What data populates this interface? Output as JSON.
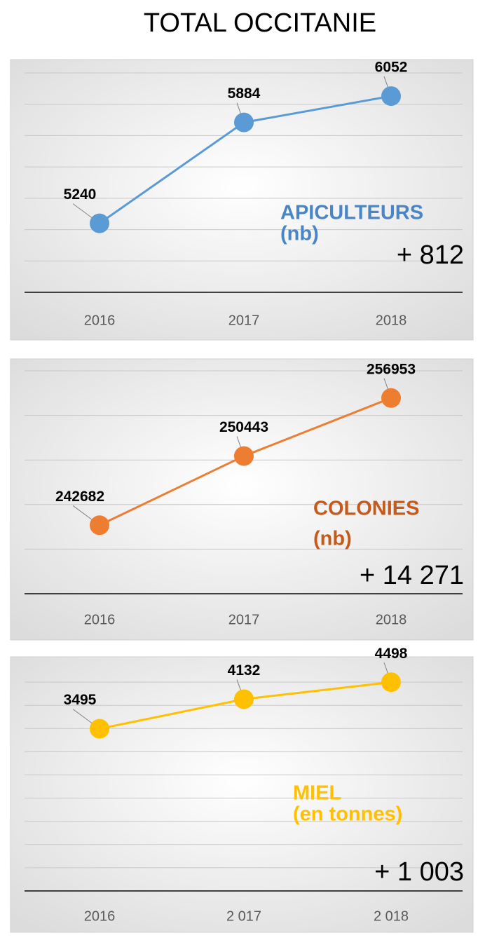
{
  "title": "TOTAL OCCITANIE",
  "chart_data": [
    {
      "type": "line",
      "categories": [
        "2016",
        "2017",
        "2018"
      ],
      "values": [
        5240,
        5884,
        6052
      ],
      "color": "#5b9bd5",
      "label_lines": [
        "APICULTEURS",
        "(nb)"
      ],
      "label_color": "#4a86c6",
      "delta": "+ 812",
      "ylim": [
        4800,
        6200
      ],
      "yticks": [
        4800,
        5000,
        5200,
        5400,
        5600,
        5800,
        6000,
        6200
      ],
      "grid": true
    },
    {
      "type": "line",
      "categories": [
        "2016",
        "2017",
        "2018"
      ],
      "values": [
        242682,
        250443,
        256953
      ],
      "color": "#ed7d31",
      "label_lines": [
        "COLONIES",
        "(nb)"
      ],
      "label_color": "#c65a1a",
      "delta": "+ 14 271",
      "ylim": [
        235000,
        260000
      ],
      "yticks": [
        235000,
        240000,
        245000,
        250000,
        255000,
        260000
      ],
      "grid": true
    },
    {
      "type": "line",
      "categories": [
        "2016",
        "2 017",
        "2 018"
      ],
      "values": [
        3495,
        4132,
        4498
      ],
      "color": "#ffc000",
      "label_lines": [
        "MIEL",
        "(en tonnes)"
      ],
      "label_color": "#ffc000",
      "delta": "+ 1 003",
      "ylim": [
        0,
        5000
      ],
      "yticks": [
        0,
        500,
        1000,
        1500,
        2000,
        2500,
        3000,
        3500,
        4000,
        4500
      ],
      "grid": true
    }
  ]
}
